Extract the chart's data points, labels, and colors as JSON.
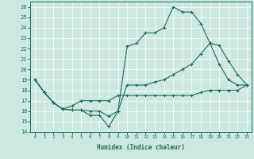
{
  "xlabel": "Humidex (Indice chaleur)",
  "bg_color": "#cce8e0",
  "grid_color": "#ffffff",
  "line_color": "#1a6b5a",
  "xlim": [
    -0.5,
    23.5
  ],
  "ylim": [
    14,
    26.5
  ],
  "xticks": [
    0,
    1,
    2,
    3,
    4,
    5,
    6,
    7,
    8,
    9,
    10,
    11,
    12,
    13,
    14,
    15,
    16,
    17,
    18,
    19,
    20,
    21,
    22,
    23
  ],
  "yticks": [
    14,
    15,
    16,
    17,
    18,
    19,
    20,
    21,
    22,
    23,
    24,
    25,
    26
  ],
  "line1_x": [
    0,
    1,
    2,
    3,
    4,
    5,
    6,
    7,
    8,
    9,
    10,
    11,
    12,
    13,
    14,
    15,
    16,
    17,
    18,
    19,
    20,
    21,
    22,
    23
  ],
  "line1_y": [
    19,
    17.8,
    16.8,
    16.2,
    16.1,
    16.1,
    15.6,
    15.6,
    14.5,
    16.0,
    22.2,
    22.5,
    23.5,
    23.5,
    24.0,
    26.0,
    25.5,
    25.5,
    24.4,
    22.5,
    20.5,
    19.0,
    18.5,
    18.5
  ],
  "line2_x": [
    0,
    1,
    2,
    3,
    4,
    5,
    6,
    7,
    8,
    9,
    10,
    11,
    12,
    13,
    14,
    15,
    16,
    17,
    18,
    19,
    20,
    21,
    22,
    23
  ],
  "line2_y": [
    19,
    17.8,
    16.8,
    16.2,
    16.1,
    16.1,
    16.0,
    16.0,
    15.5,
    16.0,
    18.5,
    18.5,
    18.5,
    18.8,
    19.0,
    19.5,
    20.0,
    20.5,
    21.5,
    22.5,
    22.3,
    20.8,
    19.5,
    18.5
  ],
  "line3_x": [
    0,
    1,
    2,
    3,
    4,
    5,
    6,
    7,
    8,
    9,
    10,
    11,
    12,
    13,
    14,
    15,
    16,
    17,
    18,
    19,
    20,
    21,
    22,
    23
  ],
  "line3_y": [
    19,
    17.8,
    16.8,
    16.2,
    16.5,
    17.0,
    17.0,
    17.0,
    17.0,
    17.5,
    17.5,
    17.5,
    17.5,
    17.5,
    17.5,
    17.5,
    17.5,
    17.5,
    17.8,
    18.0,
    18.0,
    18.0,
    18.0,
    18.5
  ]
}
